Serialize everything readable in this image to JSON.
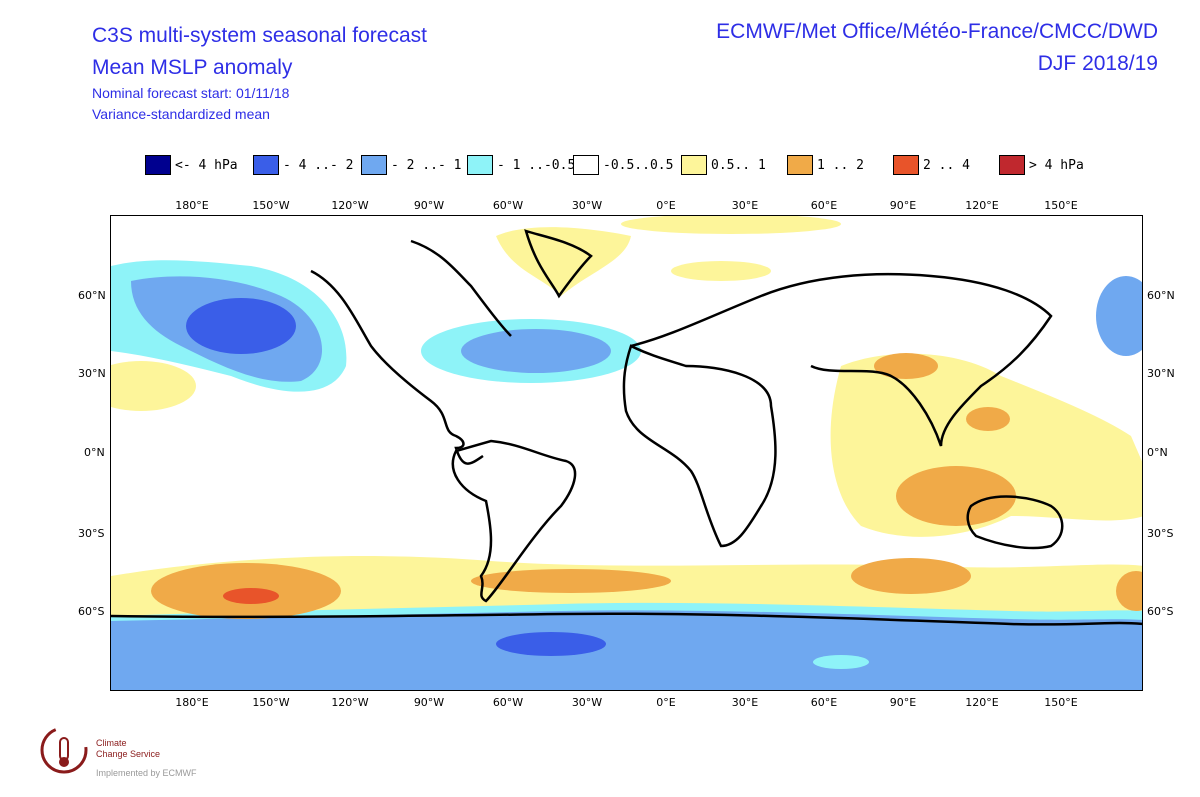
{
  "header": {
    "title_line1": "C3S multi-system seasonal forecast",
    "title_line2": "Mean MSLP anomaly",
    "subtitle_line1": "Nominal forecast start: 01/11/18",
    "subtitle_line2": "Variance-standardized mean",
    "centres": "ECMWF/Met Office/Météo-France/CMCC/DWD",
    "season": "DJF 2018/19"
  },
  "legend": [
    {
      "label": "<- 4 hPa",
      "color": "#00008f"
    },
    {
      "label": "- 4 ..- 2",
      "color": "#3a5ee8"
    },
    {
      "label": "- 2 ..- 1",
      "color": "#6fa8f0"
    },
    {
      "label": "- 1 ..-0.5",
      "color": "#8ef3f8"
    },
    {
      "label": "-0.5..0.5",
      "color": "#ffffff"
    },
    {
      "label": "0.5.. 1",
      "color": "#fdf59a"
    },
    {
      "label": "1 .. 2",
      "color": "#f0aa48"
    },
    {
      "label": "2 .. 4",
      "color": "#e8542a"
    },
    {
      "label": ">  4 hPa",
      "color": "#c0282e"
    }
  ],
  "axes": {
    "lon_labels_top": [
      "180°E",
      "150°W",
      "120°W",
      "90°W",
      "60°W",
      "30°W",
      "0°E",
      "30°E",
      "60°E",
      "90°E",
      "120°E",
      "150°E"
    ],
    "lon_labels_bottom": [
      "180°E",
      "150°W",
      "120°W",
      "90°W",
      "60°W",
      "30°W",
      "0°E",
      "30°E",
      "60°E",
      "90°E",
      "120°E",
      "150°E"
    ],
    "lat_labels_left": [
      "60°N",
      "30°N",
      "0°N",
      "30°S",
      "60°S"
    ],
    "lat_labels_right": [
      "60°N",
      "30°N",
      "0°N",
      "30°S",
      "60°S"
    ]
  },
  "logo": {
    "line1": "Climate",
    "line2": "Change Service",
    "line3": "Implemented by ECMWF"
  }
}
